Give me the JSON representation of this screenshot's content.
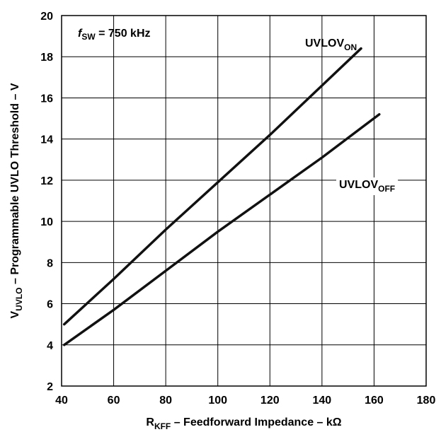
{
  "chart_data": {
    "type": "line",
    "title": "",
    "xlabel": {
      "main": "R",
      "sub": "KFF",
      "rest": " – Feedforward Impedance – kΩ"
    },
    "ylabel": {
      "main": "V",
      "sub": "UVLO",
      "rest": " – Programmable UVLO Threshold – V"
    },
    "xlim": [
      40,
      180
    ],
    "ylim": [
      2,
      20
    ],
    "xticks": [
      40,
      60,
      80,
      100,
      120,
      140,
      160,
      180
    ],
    "yticks": [
      2,
      4,
      6,
      8,
      10,
      12,
      14,
      16,
      18,
      20
    ],
    "grid": true,
    "series": [
      {
        "name": "UVLOV_ON",
        "label_main": "UVLOV",
        "label_sub": "ON",
        "x": [
          41,
          60,
          80,
          100,
          120,
          140,
          155
        ],
        "y": [
          5.0,
          7.2,
          9.6,
          11.9,
          14.2,
          16.6,
          18.4
        ]
      },
      {
        "name": "UVLOV_OFF",
        "label_main": "UVLOV",
        "label_sub": "OFF",
        "x": [
          41,
          60,
          80,
          100,
          120,
          140,
          162
        ],
        "y": [
          4.0,
          5.7,
          7.6,
          9.5,
          11.3,
          13.1,
          15.2
        ]
      }
    ],
    "annotations": [
      {
        "main": "f",
        "sub": "SW",
        "rest": " = 750 kHz"
      }
    ]
  }
}
